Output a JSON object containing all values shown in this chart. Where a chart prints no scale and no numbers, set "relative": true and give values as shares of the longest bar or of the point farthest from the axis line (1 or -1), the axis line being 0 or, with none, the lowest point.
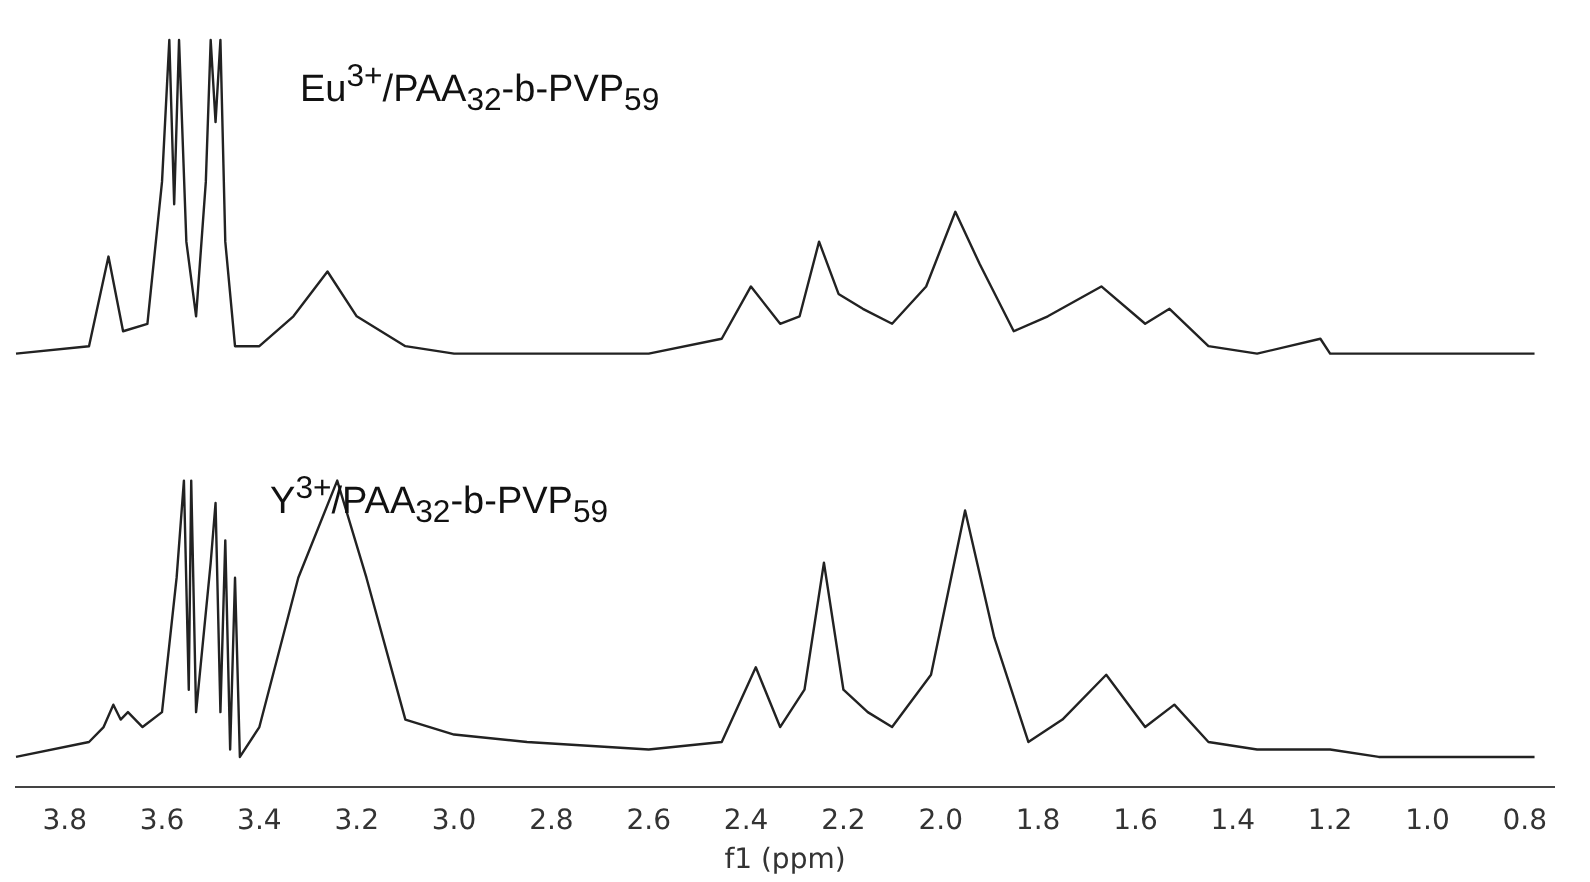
{
  "chart_data": {
    "type": "line",
    "relative": true,
    "xlabel": "f1 (ppm)",
    "xlim": [
      3.9,
      0.74
    ],
    "xticks": [
      3.8,
      3.6,
      3.4,
      3.2,
      {
        "value": 3,
        "label": "3.0"
      },
      2.8,
      2.6,
      2.4,
      2.2,
      {
        "value": 2,
        "label": "2.0"
      },
      1.8,
      1.6,
      1.4,
      1.2,
      {
        "value": 1,
        "label": "1.0"
      },
      0.8
    ],
    "grid": false,
    "legend": false,
    "marker": "none",
    "line_style": "solid",
    "annotations": [
      "Eu$^{3+}$/PAA$_{32}$-b-PVP$_{59}$",
      "Y$^{3+}$/PAA$_{32}$-b-PVP$_{59}$"
    ],
    "series": [
      {
        "color": "#222222",
        "x": [
          3.9,
          3.75,
          3.71,
          3.68,
          3.63,
          3.6,
          3.585,
          3.575,
          3.565,
          3.55,
          3.53,
          3.51,
          3.5,
          3.49,
          3.48,
          3.47,
          3.45,
          3.4,
          3.33,
          3.26,
          3.2,
          3.1,
          3.0,
          2.8,
          2.6,
          2.45,
          2.39,
          2.33,
          2.29,
          2.25,
          2.21,
          2.16,
          2.1,
          2.03,
          1.97,
          1.92,
          1.85,
          1.78,
          1.67,
          1.58,
          1.53,
          1.45,
          1.35,
          1.22,
          1.2,
          1.0,
          0.78
        ],
        "values": [
          0.58,
          0.59,
          0.71,
          0.61,
          0.62,
          0.81,
          1,
          0.78,
          1,
          0.73,
          0.63,
          0.81,
          1,
          0.89,
          1,
          0.73,
          0.59,
          0.59,
          0.63,
          0.69,
          0.63,
          0.59,
          0.58,
          0.58,
          0.58,
          0.6,
          0.67,
          0.62,
          0.63,
          0.73,
          0.66,
          0.64,
          0.62,
          0.67,
          0.77,
          0.7,
          0.61,
          0.63,
          0.67,
          0.62,
          0.64,
          0.59,
          0.58,
          0.6,
          0.58,
          0.58,
          0.58
        ]
      },
      {
        "color": "#222222",
        "x": [
          3.9,
          3.75,
          3.72,
          3.7,
          3.685,
          3.67,
          3.64,
          3.6,
          3.57,
          3.555,
          3.545,
          3.54,
          3.53,
          3.5,
          3.49,
          3.48,
          3.47,
          3.46,
          3.45,
          3.44,
          3.4,
          3.32,
          3.24,
          3.18,
          3.1,
          3.0,
          2.85,
          2.6,
          2.45,
          2.38,
          2.33,
          2.28,
          2.24,
          2.2,
          2.15,
          2.1,
          2.02,
          1.95,
          1.89,
          1.82,
          1.75,
          1.66,
          1.58,
          1.52,
          1.45,
          1.35,
          1.2,
          1.1,
          0.78
        ],
        "values": [
          0.04,
          0.06,
          0.08,
          0.11,
          0.09,
          0.1,
          0.08,
          0.1,
          0.28,
          0.41,
          0.13,
          0.41,
          0.1,
          0.3,
          0.38,
          0.1,
          0.33,
          0.05,
          0.28,
          0.04,
          0.08,
          0.28,
          0.41,
          0.28,
          0.09,
          0.07,
          0.06,
          0.05,
          0.06,
          0.16,
          0.08,
          0.13,
          0.3,
          0.13,
          0.1,
          0.08,
          0.15,
          0.37,
          0.2,
          0.06,
          0.09,
          0.15,
          0.08,
          0.11,
          0.06,
          0.05,
          0.05,
          0.04,
          0.04
        ]
      }
    ]
  }
}
